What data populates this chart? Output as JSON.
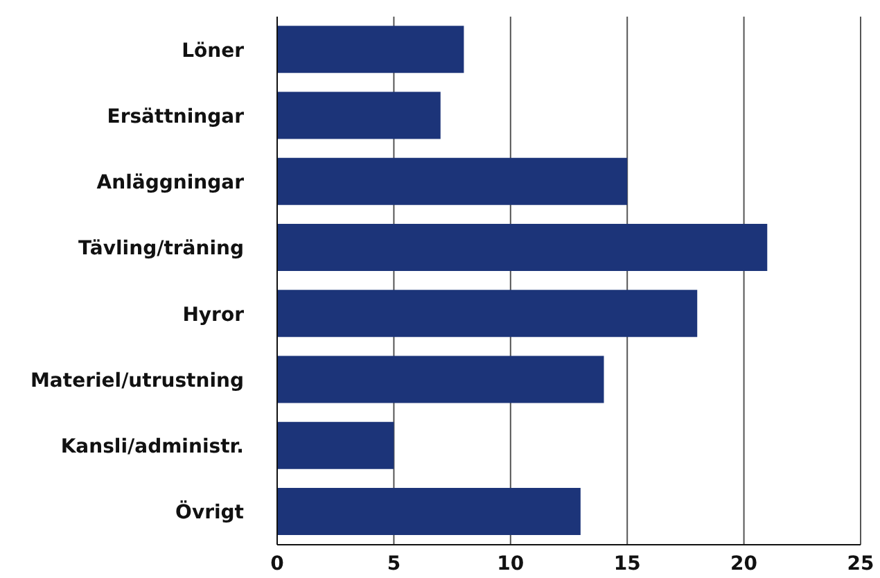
{
  "chart_data": {
    "type": "bar",
    "orientation": "horizontal",
    "categories": [
      "Löner",
      "Ersättningar",
      "Anläggningar",
      "Tävling/träning",
      "Hyror",
      "Materiel/utrustning",
      "Kansli/administr.",
      "Övrigt"
    ],
    "values": [
      8,
      7,
      15,
      21,
      18,
      14,
      5,
      13
    ],
    "color": "#1c3479",
    "xlim": [
      0,
      25
    ],
    "xticks": [
      0,
      5,
      10,
      15,
      20,
      25
    ],
    "grid": "x"
  }
}
